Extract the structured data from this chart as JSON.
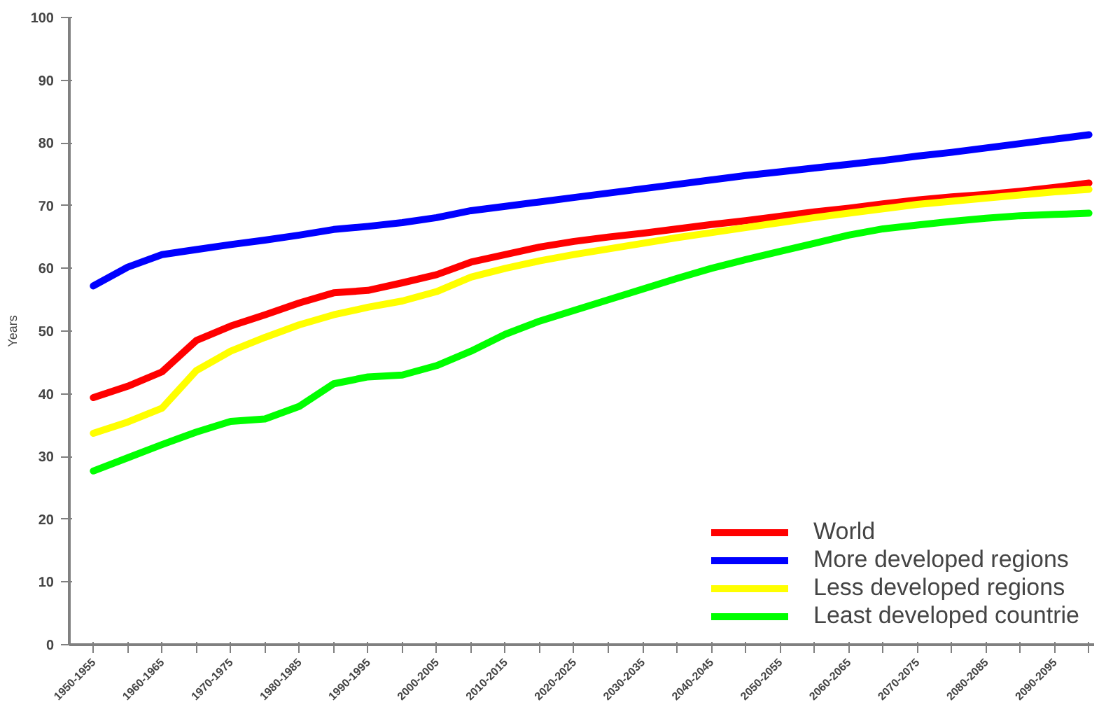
{
  "chart_data": {
    "type": "line",
    "ylabel": "Years",
    "categories": [
      "1950-1955",
      null,
      "1960-1965",
      null,
      "1970-1975",
      null,
      "1980-1985",
      null,
      "1990-1995",
      null,
      "2000-2005",
      null,
      "2010-2015",
      null,
      "2020-2025",
      null,
      "2030-2035",
      null,
      "2040-2045",
      null,
      "2050-2055",
      null,
      "2060-2065",
      null,
      "2070-2075",
      null,
      "2080-2085",
      null,
      "2090-2095",
      null
    ],
    "series": [
      {
        "name": "World",
        "color": "#ff0000",
        "values": [
          39.4,
          41.2,
          43.5,
          48.5,
          50.8,
          52.6,
          54.5,
          56.1,
          56.5,
          57.7,
          59.0,
          61.0,
          62.2,
          63.4,
          64.3,
          65.0,
          65.6,
          66.3,
          67.0,
          67.6,
          68.3,
          69.0,
          69.6,
          70.3,
          70.9,
          71.4,
          71.8,
          72.3,
          72.9,
          73.6
        ]
      },
      {
        "name": "More developed regions",
        "color": "#0000ff",
        "values": [
          57.2,
          60.2,
          62.2,
          63.0,
          63.8,
          64.5,
          65.3,
          66.2,
          66.7,
          67.3,
          68.1,
          69.2,
          69.9,
          70.6,
          71.3,
          72.0,
          72.7,
          73.4,
          74.1,
          74.8,
          75.4,
          76.0,
          76.6,
          77.2,
          77.9,
          78.5,
          79.2,
          79.9,
          80.6,
          81.3
        ]
      },
      {
        "name": "Less developed regions",
        "color": "#ffff00",
        "values": [
          33.7,
          35.5,
          37.7,
          43.7,
          46.8,
          49.0,
          51.0,
          52.6,
          53.8,
          54.8,
          56.3,
          58.6,
          60.0,
          61.2,
          62.2,
          63.1,
          64.0,
          64.9,
          65.7,
          66.5,
          67.3,
          68.1,
          68.8,
          69.5,
          70.2,
          70.7,
          71.2,
          71.7,
          72.2,
          72.6
        ]
      },
      {
        "name": "Least developed countrie",
        "color": "#00ff00",
        "values": [
          27.7,
          29.8,
          31.9,
          33.9,
          35.6,
          36.0,
          38.0,
          41.6,
          42.7,
          43.0,
          44.5,
          46.8,
          49.5,
          51.6,
          53.3,
          55.0,
          56.7,
          58.4,
          60.0,
          61.4,
          62.7,
          64.0,
          65.3,
          66.3,
          66.9,
          67.5,
          68.0,
          68.4,
          68.6,
          68.8
        ]
      }
    ],
    "ylim": [
      0,
      100
    ],
    "yticks": [
      0,
      10,
      20,
      30,
      40,
      50,
      60,
      70,
      80,
      90,
      100
    ],
    "legend": "bottom right",
    "grid": false,
    "marker": "none",
    "line_style": "solid"
  }
}
